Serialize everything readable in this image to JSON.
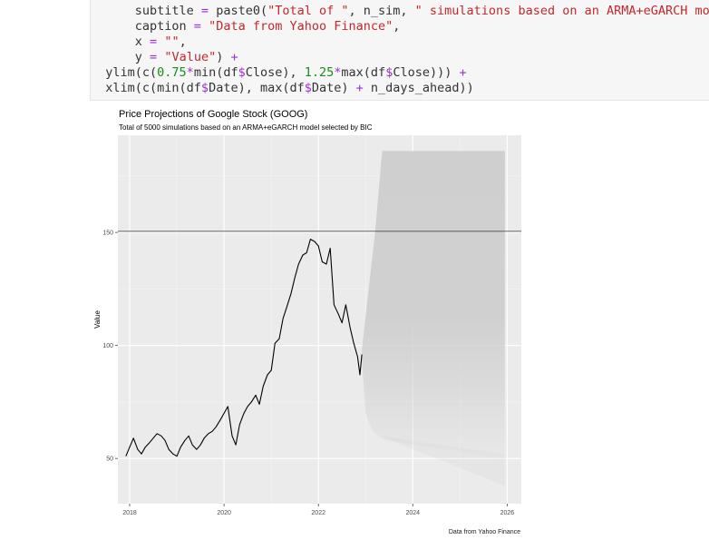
{
  "code": {
    "lines": [
      [
        {
          "t": "      subtitle ",
          "c": "fn"
        },
        {
          "t": "=",
          "c": "op"
        },
        {
          "t": " paste0(",
          "c": "fn"
        },
        {
          "t": "\"Total of \"",
          "c": "str"
        },
        {
          "t": ", n_sim, ",
          "c": "fn"
        },
        {
          "t": "\" simulations based on an ARMA+eGARCH mod",
          "c": "str"
        }
      ],
      [
        {
          "t": "      caption ",
          "c": "fn"
        },
        {
          "t": "=",
          "c": "op"
        },
        {
          "t": " ",
          "c": "fn"
        },
        {
          "t": "\"Data from Yahoo Finance\"",
          "c": "str"
        },
        {
          "t": ",",
          "c": "fn"
        }
      ],
      [
        {
          "t": "      x ",
          "c": "fn"
        },
        {
          "t": "=",
          "c": "op"
        },
        {
          "t": " ",
          "c": "fn"
        },
        {
          "t": "\"\"",
          "c": "str"
        },
        {
          "t": ",",
          "c": "fn"
        }
      ],
      [
        {
          "t": "      y ",
          "c": "fn"
        },
        {
          "t": "=",
          "c": "op"
        },
        {
          "t": " ",
          "c": "fn"
        },
        {
          "t": "\"Value\"",
          "c": "str"
        },
        {
          "t": ") ",
          "c": "fn"
        },
        {
          "t": "+",
          "c": "op"
        }
      ],
      [
        {
          "t": "  ylim(c(",
          "c": "fn"
        },
        {
          "t": "0.75",
          "c": "num"
        },
        {
          "t": "*",
          "c": "op"
        },
        {
          "t": "min(df",
          "c": "fn"
        },
        {
          "t": "$",
          "c": "dollar"
        },
        {
          "t": "Close), ",
          "c": "fn"
        },
        {
          "t": "1.25",
          "c": "num"
        },
        {
          "t": "*",
          "c": "op"
        },
        {
          "t": "max(df",
          "c": "fn"
        },
        {
          "t": "$",
          "c": "dollar"
        },
        {
          "t": "Close))) ",
          "c": "fn"
        },
        {
          "t": "+",
          "c": "op"
        }
      ],
      [
        {
          "t": "  xlim(c(min(df",
          "c": "fn"
        },
        {
          "t": "$",
          "c": "dollar"
        },
        {
          "t": "Date), max(df",
          "c": "fn"
        },
        {
          "t": "$",
          "c": "dollar"
        },
        {
          "t": "Date) ",
          "c": "fn"
        },
        {
          "t": "+",
          "c": "op"
        },
        {
          "t": " n_days_ahead))",
          "c": "fn"
        }
      ]
    ]
  },
  "chart_data": {
    "type": "line",
    "title": "Price Projections of Google Stock (GOOG)",
    "subtitle": "Total of 5000 simulations based on an ARMA+eGARCH model selected by BIC",
    "caption": "Data from Yahoo Finance",
    "xlabel": "",
    "ylabel": "Value",
    "xlim": [
      2017.75,
      2026.3
    ],
    "ylim": [
      30,
      193
    ],
    "x_ticks": [
      "2018",
      "2020",
      "2022",
      "2024",
      "2026"
    ],
    "y_ticks": [
      "50",
      "100",
      "150"
    ],
    "hline": 150.5,
    "grid": true,
    "series": [
      {
        "color": "#000000",
        "points": [
          [
            2017.92,
            51
          ],
          [
            2018.0,
            55
          ],
          [
            2018.08,
            59
          ],
          [
            2018.17,
            54
          ],
          [
            2018.25,
            52
          ],
          [
            2018.33,
            55
          ],
          [
            2018.42,
            57
          ],
          [
            2018.5,
            59
          ],
          [
            2018.58,
            61
          ],
          [
            2018.67,
            60
          ],
          [
            2018.75,
            58
          ],
          [
            2018.83,
            54
          ],
          [
            2018.92,
            52
          ],
          [
            2019.0,
            51
          ],
          [
            2019.08,
            55
          ],
          [
            2019.17,
            58
          ],
          [
            2019.25,
            60
          ],
          [
            2019.33,
            56
          ],
          [
            2019.42,
            54
          ],
          [
            2019.5,
            56
          ],
          [
            2019.58,
            59
          ],
          [
            2019.67,
            61
          ],
          [
            2019.75,
            62
          ],
          [
            2019.83,
            64
          ],
          [
            2019.92,
            67
          ],
          [
            2020.0,
            70
          ],
          [
            2020.08,
            73
          ],
          [
            2020.17,
            60
          ],
          [
            2020.25,
            56
          ],
          [
            2020.33,
            65
          ],
          [
            2020.42,
            70
          ],
          [
            2020.5,
            73
          ],
          [
            2020.58,
            75
          ],
          [
            2020.67,
            78
          ],
          [
            2020.75,
            74
          ],
          [
            2020.83,
            82
          ],
          [
            2020.92,
            87
          ],
          [
            2021.0,
            89
          ],
          [
            2021.08,
            101
          ],
          [
            2021.17,
            103
          ],
          [
            2021.25,
            112
          ],
          [
            2021.33,
            117
          ],
          [
            2021.42,
            123
          ],
          [
            2021.5,
            130
          ],
          [
            2021.58,
            136
          ],
          [
            2021.67,
            140
          ],
          [
            2021.75,
            141
          ],
          [
            2021.83,
            147
          ],
          [
            2021.92,
            146
          ],
          [
            2022.0,
            144
          ],
          [
            2022.08,
            137
          ],
          [
            2022.17,
            136
          ],
          [
            2022.25,
            143
          ],
          [
            2022.33,
            118
          ],
          [
            2022.42,
            114
          ],
          [
            2022.5,
            110
          ],
          [
            2022.58,
            118
          ],
          [
            2022.67,
            108
          ],
          [
            2022.75,
            101
          ],
          [
            2022.83,
            95
          ],
          [
            2022.88,
            87
          ],
          [
            2022.92,
            96
          ]
        ]
      }
    ],
    "simulation_band": {
      "color": "#cfcfcf",
      "x_start": 2022.92,
      "x_end": 2025.95,
      "upper": [
        [
          2022.92,
          98
        ],
        [
          2023.05,
          122
        ],
        [
          2023.2,
          150
        ],
        [
          2023.35,
          186
        ],
        [
          2025.95,
          186
        ]
      ],
      "lower": [
        [
          2022.92,
          94
        ],
        [
          2023.0,
          70
        ],
        [
          2023.15,
          62
        ],
        [
          2023.4,
          58
        ],
        [
          2025.95,
          50
        ]
      ]
    }
  }
}
